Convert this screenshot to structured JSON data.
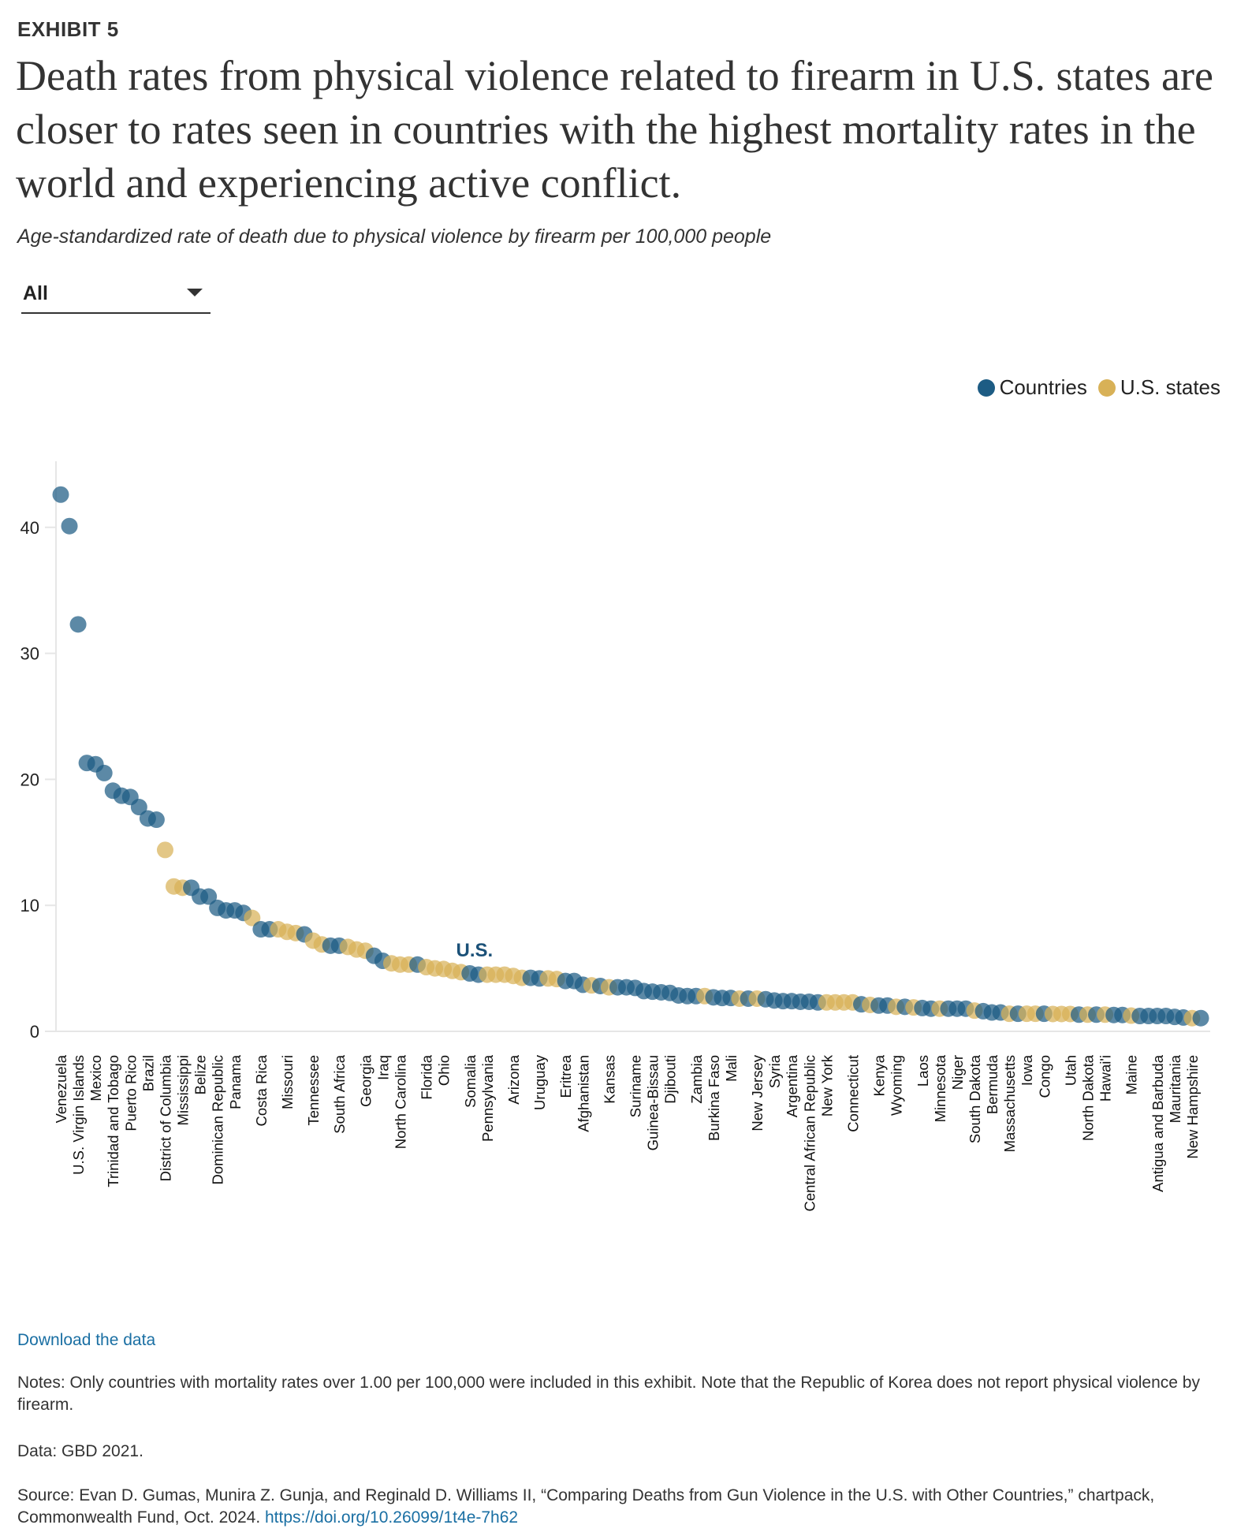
{
  "header": {
    "exhibit": "EXHIBIT 5",
    "title": "Death rates from physical violence related to firearm in U.S. states are closer to rates seen in countries with the highest mortality rates in the world and experiencing active conflict.",
    "subtitle": "Age-standardized rate of death due to physical violence by firearm per 100,000 people"
  },
  "filter": {
    "selected": "All"
  },
  "legend": {
    "countries": "Countries",
    "states": "U.S. states"
  },
  "colors": {
    "country": "#1d5c84",
    "state": "#d8b157",
    "annotation": "#1b5178"
  },
  "chart_data": {
    "type": "scatter",
    "title": "",
    "xlabel": "",
    "ylabel": "",
    "ylim": [
      0,
      45
    ],
    "yticks": [
      0,
      10,
      20,
      30,
      40
    ],
    "grid": false,
    "legend_position": "top-right",
    "annotation": {
      "text": "U.S.",
      "near_index": 48
    },
    "series": [
      {
        "name": "Countries",
        "group": "C"
      },
      {
        "name": "U.S. states",
        "group": "S"
      }
    ],
    "points": [
      {
        "v": 42.6,
        "g": "C",
        "label": "Venezuela"
      },
      {
        "v": 40.1,
        "g": "C"
      },
      {
        "v": 32.3,
        "g": "C",
        "label": "U.S. Virgin Islands"
      },
      {
        "v": 21.3,
        "g": "C"
      },
      {
        "v": 21.2,
        "g": "C",
        "label": "Mexico"
      },
      {
        "v": 20.5,
        "g": "C"
      },
      {
        "v": 19.1,
        "g": "C",
        "label": "Trinidad and Tobago"
      },
      {
        "v": 18.7,
        "g": "C"
      },
      {
        "v": 18.6,
        "g": "C",
        "label": "Puerto Rico"
      },
      {
        "v": 17.8,
        "g": "C"
      },
      {
        "v": 16.9,
        "g": "C",
        "label": "Brazil"
      },
      {
        "v": 16.8,
        "g": "C"
      },
      {
        "v": 14.4,
        "g": "S",
        "label": "District of Columbia"
      },
      {
        "v": 11.5,
        "g": "S"
      },
      {
        "v": 11.4,
        "g": "S",
        "label": "Mississippi"
      },
      {
        "v": 11.4,
        "g": "C"
      },
      {
        "v": 10.7,
        "g": "C",
        "label": "Belize"
      },
      {
        "v": 10.7,
        "g": "C"
      },
      {
        "v": 9.8,
        "g": "C",
        "label": "Dominican Republic"
      },
      {
        "v": 9.6,
        "g": "C"
      },
      {
        "v": 9.6,
        "g": "C",
        "label": "Panama"
      },
      {
        "v": 9.4,
        "g": "C"
      },
      {
        "v": 9.0,
        "g": "S"
      },
      {
        "v": 8.1,
        "g": "C",
        "label": "Costa Rica"
      },
      {
        "v": 8.1,
        "g": "C"
      },
      {
        "v": 8.1,
        "g": "S"
      },
      {
        "v": 7.9,
        "g": "S",
        "label": "Missouri"
      },
      {
        "v": 7.8,
        "g": "S"
      },
      {
        "v": 7.7,
        "g": "C"
      },
      {
        "v": 7.2,
        "g": "S",
        "label": "Tennessee"
      },
      {
        "v": 6.9,
        "g": "S"
      },
      {
        "v": 6.8,
        "g": "C"
      },
      {
        "v": 6.8,
        "g": "C",
        "label": "South Africa"
      },
      {
        "v": 6.7,
        "g": "S"
      },
      {
        "v": 6.5,
        "g": "S"
      },
      {
        "v": 6.4,
        "g": "S",
        "label": "Georgia"
      },
      {
        "v": 6.0,
        "g": "C"
      },
      {
        "v": 5.6,
        "g": "C",
        "label": "Iraq"
      },
      {
        "v": 5.4,
        "g": "S"
      },
      {
        "v": 5.3,
        "g": "S",
        "label": "North Carolina"
      },
      {
        "v": 5.3,
        "g": "S"
      },
      {
        "v": 5.3,
        "g": "C"
      },
      {
        "v": 5.1,
        "g": "S",
        "label": "Florida"
      },
      {
        "v": 5.0,
        "g": "S"
      },
      {
        "v": 4.95,
        "g": "S",
        "label": "Ohio"
      },
      {
        "v": 4.8,
        "g": "S"
      },
      {
        "v": 4.7,
        "g": "S"
      },
      {
        "v": 4.6,
        "g": "C",
        "label": "Somalia"
      },
      {
        "v": 4.5,
        "g": "C"
      },
      {
        "v": 4.5,
        "g": "S",
        "label": "Pennsylvania"
      },
      {
        "v": 4.5,
        "g": "S"
      },
      {
        "v": 4.5,
        "g": "S"
      },
      {
        "v": 4.4,
        "g": "S",
        "label": "Arizona"
      },
      {
        "v": 4.25,
        "g": "S"
      },
      {
        "v": 4.25,
        "g": "C"
      },
      {
        "v": 4.2,
        "g": "C",
        "label": "Uruguay"
      },
      {
        "v": 4.2,
        "g": "S"
      },
      {
        "v": 4.15,
        "g": "S"
      },
      {
        "v": 4.0,
        "g": "C",
        "label": "Eritrea"
      },
      {
        "v": 4.0,
        "g": "C"
      },
      {
        "v": 3.7,
        "g": "C",
        "label": "Afghanistan"
      },
      {
        "v": 3.65,
        "g": "S"
      },
      {
        "v": 3.6,
        "g": "C"
      },
      {
        "v": 3.5,
        "g": "S",
        "label": "Kansas"
      },
      {
        "v": 3.5,
        "g": "C"
      },
      {
        "v": 3.5,
        "g": "C"
      },
      {
        "v": 3.45,
        "g": "C",
        "label": "Suriname"
      },
      {
        "v": 3.2,
        "g": "C"
      },
      {
        "v": 3.15,
        "g": "C",
        "label": "Guinea-Bissau"
      },
      {
        "v": 3.1,
        "g": "C"
      },
      {
        "v": 3.05,
        "g": "C",
        "label": "Djibouti"
      },
      {
        "v": 2.85,
        "g": "C"
      },
      {
        "v": 2.8,
        "g": "C"
      },
      {
        "v": 2.8,
        "g": "C",
        "label": "Zambia"
      },
      {
        "v": 2.8,
        "g": "S"
      },
      {
        "v": 2.7,
        "g": "C",
        "label": "Burkina Faso"
      },
      {
        "v": 2.65,
        "g": "C"
      },
      {
        "v": 2.65,
        "g": "C",
        "label": "Mali"
      },
      {
        "v": 2.6,
        "g": "S"
      },
      {
        "v": 2.6,
        "g": "C"
      },
      {
        "v": 2.6,
        "g": "S",
        "label": "New Jersey"
      },
      {
        "v": 2.55,
        "g": "C"
      },
      {
        "v": 2.45,
        "g": "C",
        "label": "Syria"
      },
      {
        "v": 2.4,
        "g": "C"
      },
      {
        "v": 2.4,
        "g": "C",
        "label": "Argentina"
      },
      {
        "v": 2.35,
        "g": "C"
      },
      {
        "v": 2.35,
        "g": "C",
        "label": "Central African Republic"
      },
      {
        "v": 2.3,
        "g": "C"
      },
      {
        "v": 2.3,
        "g": "S",
        "label": "New York"
      },
      {
        "v": 2.3,
        "g": "S"
      },
      {
        "v": 2.3,
        "g": "S"
      },
      {
        "v": 2.3,
        "g": "S",
        "label": "Connecticut"
      },
      {
        "v": 2.15,
        "g": "C"
      },
      {
        "v": 2.1,
        "g": "S"
      },
      {
        "v": 2.05,
        "g": "C",
        "label": "Kenya"
      },
      {
        "v": 2.05,
        "g": "C"
      },
      {
        "v": 1.95,
        "g": "S",
        "label": "Wyoming"
      },
      {
        "v": 1.95,
        "g": "C"
      },
      {
        "v": 1.9,
        "g": "S"
      },
      {
        "v": 1.85,
        "g": "C",
        "label": "Laos"
      },
      {
        "v": 1.8,
        "g": "C"
      },
      {
        "v": 1.8,
        "g": "S",
        "label": "Minnesota"
      },
      {
        "v": 1.8,
        "g": "C"
      },
      {
        "v": 1.8,
        "g": "C",
        "label": "Niger"
      },
      {
        "v": 1.8,
        "g": "C"
      },
      {
        "v": 1.65,
        "g": "S",
        "label": "South Dakota"
      },
      {
        "v": 1.6,
        "g": "C"
      },
      {
        "v": 1.5,
        "g": "C",
        "label": "Bermuda"
      },
      {
        "v": 1.5,
        "g": "C"
      },
      {
        "v": 1.4,
        "g": "S",
        "label": "Massachusetts"
      },
      {
        "v": 1.4,
        "g": "C"
      },
      {
        "v": 1.4,
        "g": "S",
        "label": "Iowa"
      },
      {
        "v": 1.4,
        "g": "S"
      },
      {
        "v": 1.4,
        "g": "C",
        "label": "Congo"
      },
      {
        "v": 1.38,
        "g": "S"
      },
      {
        "v": 1.38,
        "g": "S"
      },
      {
        "v": 1.38,
        "g": "S",
        "label": "Utah"
      },
      {
        "v": 1.33,
        "g": "C"
      },
      {
        "v": 1.33,
        "g": "S",
        "label": "North Dakota"
      },
      {
        "v": 1.33,
        "g": "C"
      },
      {
        "v": 1.33,
        "g": "S",
        "label": "Hawai'i"
      },
      {
        "v": 1.3,
        "g": "C"
      },
      {
        "v": 1.3,
        "g": "C"
      },
      {
        "v": 1.25,
        "g": "S",
        "label": "Maine"
      },
      {
        "v": 1.22,
        "g": "C"
      },
      {
        "v": 1.22,
        "g": "C"
      },
      {
        "v": 1.22,
        "g": "C",
        "label": "Antigua and Barbuda"
      },
      {
        "v": 1.22,
        "g": "C"
      },
      {
        "v": 1.15,
        "g": "C",
        "label": "Mauritania"
      },
      {
        "v": 1.1,
        "g": "C"
      },
      {
        "v": 1.05,
        "g": "S",
        "label": "New Hampshire"
      },
      {
        "v": 1.05,
        "g": "C"
      }
    ]
  },
  "footer": {
    "download": "Download the data",
    "notes": "Notes: Only countries with mortality rates over 1.00 per 100,000 were included in this exhibit. Note that the Republic of Korea does not report physical violence by firearm.",
    "data": "Data: GBD 2021.",
    "source": "Source: Evan D. Gumas, Munira Z. Gunja, and Reginald D. Williams II, “Comparing Deaths from Gun Violence in the U.S. with Other Countries,” chartpack, Commonwealth Fund, Oct. 2024. ",
    "doi": "https://doi.org/10.26099/1t4e-7h62"
  }
}
